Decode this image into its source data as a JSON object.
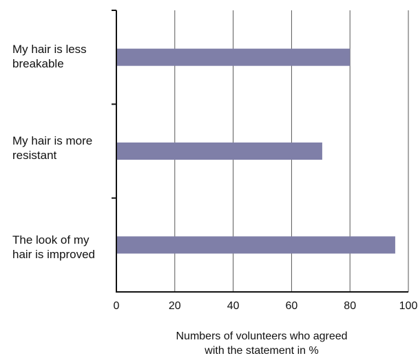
{
  "chart_data": {
    "type": "bar",
    "orientation": "horizontal",
    "categories": [
      "My hair is less breakable",
      "My hair is more resistant",
      "The look of my hair is improved"
    ],
    "category_lines": [
      [
        "My hair is less",
        "breakable"
      ],
      [
        "My hair is more",
        "resistant"
      ],
      [
        "The look of my",
        "hair is improved"
      ]
    ],
    "values": [
      80,
      70.5,
      95.5
    ],
    "xlim": [
      0,
      100
    ],
    "xticks": [
      "0",
      "20",
      "40",
      "60",
      "80",
      "100"
    ],
    "xlabel": "Numbers of volunteers who agreed with the statement in %",
    "xlabel_lines": [
      "Numbers of volunteers who agreed",
      "with the statement in %"
    ],
    "title": "",
    "ylabel": "",
    "grid": "vertical",
    "bar_color": "#7f7fa8",
    "axis_color": "#111111",
    "grid_color": "#555555"
  }
}
